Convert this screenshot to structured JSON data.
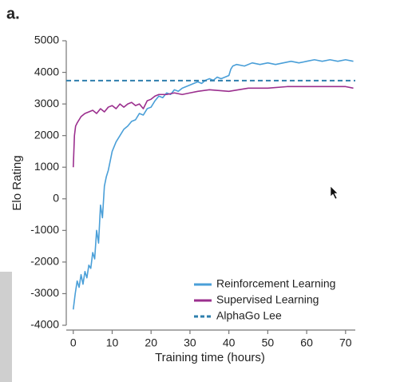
{
  "chart_data": {
    "type": "line",
    "panel_label": "a.",
    "y_label": "Elo Rating",
    "x_label": "Training time (hours)",
    "xlim": [
      -1.8,
      72.5
    ],
    "ylim": [
      -4000,
      5000
    ],
    "xticks": [
      0,
      10,
      20,
      30,
      40,
      50,
      60,
      70
    ],
    "yticks": [
      -4000,
      -3000,
      -2000,
      -1000,
      0,
      1000,
      2000,
      3000,
      4000,
      5000
    ],
    "grid": false,
    "legend": "lower right",
    "series": [
      {
        "name": "Reinforcement Learning",
        "color": "#4a9fd8",
        "dashed": false,
        "x": [
          0,
          0.5,
          1,
          1.5,
          2,
          2.5,
          3,
          3.5,
          4,
          4.5,
          5,
          5.5,
          6,
          6.5,
          7,
          7.5,
          8,
          8.5,
          9,
          9.5,
          10,
          11,
          12,
          13,
          14,
          15,
          16,
          17,
          18,
          19,
          20,
          21,
          22,
          23,
          24,
          25,
          26,
          27,
          28,
          29,
          30,
          31,
          32,
          33,
          34,
          35,
          36,
          37,
          38,
          39,
          40,
          40.5,
          41,
          42,
          44,
          46,
          48,
          50,
          52,
          54,
          56,
          58,
          60,
          62,
          64,
          66,
          68,
          70,
          72
        ],
        "values": [
          -3500,
          -3000,
          -2600,
          -2800,
          -2400,
          -2700,
          -2300,
          -2500,
          -2100,
          -2200,
          -1700,
          -1900,
          -1000,
          -1400,
          -200,
          -600,
          400,
          700,
          900,
          1200,
          1500,
          1800,
          2000,
          2200,
          2300,
          2450,
          2500,
          2700,
          2650,
          2850,
          2900,
          3100,
          3250,
          3200,
          3350,
          3300,
          3450,
          3400,
          3500,
          3550,
          3600,
          3650,
          3700,
          3650,
          3750,
          3800,
          3750,
          3850,
          3800,
          3850,
          3900,
          4100,
          4200,
          4250,
          4200,
          4300,
          4250,
          4300,
          4250,
          4300,
          4350,
          4300,
          4350,
          4400,
          4350,
          4400,
          4350,
          4400,
          4350
        ]
      },
      {
        "name": "Supervised Learning",
        "color": "#9b2f8e",
        "dashed": false,
        "x": [
          0,
          0.3,
          0.6,
          1,
          1.5,
          2,
          3,
          4,
          5,
          6,
          7,
          8,
          9,
          10,
          11,
          12,
          13,
          14,
          15,
          16,
          17,
          18,
          19,
          20,
          21,
          22,
          24,
          26,
          28,
          30,
          32,
          35,
          40,
          45,
          50,
          55,
          60,
          65,
          70,
          72
        ],
        "values": [
          1000,
          2000,
          2300,
          2400,
          2500,
          2600,
          2700,
          2750,
          2800,
          2700,
          2850,
          2750,
          2900,
          2950,
          2850,
          3000,
          2900,
          3000,
          3050,
          2950,
          3000,
          2850,
          3100,
          3150,
          3250,
          3300,
          3300,
          3350,
          3300,
          3350,
          3400,
          3450,
          3400,
          3500,
          3500,
          3550,
          3550,
          3550,
          3550,
          3500
        ]
      },
      {
        "name": "AlphaGo Lee",
        "color": "#2e7fad",
        "dashed": true,
        "x": [
          -1.8,
          72.5
        ],
        "values": [
          3739,
          3739
        ]
      }
    ]
  }
}
